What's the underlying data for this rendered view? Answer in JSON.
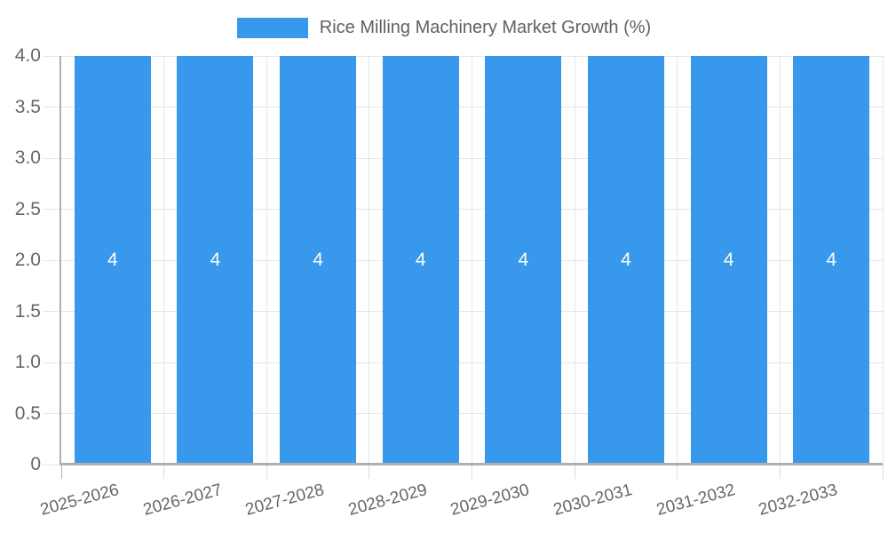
{
  "chart_data": {
    "type": "bar",
    "title": "Rice Milling Machinery Market Growth (%)",
    "categories": [
      "2025-2026",
      "2026-2027",
      "2027-2028",
      "2028-2029",
      "2029-2030",
      "2030-2031",
      "2031-2032",
      "2032-2033"
    ],
    "values": [
      4,
      4,
      4,
      4,
      4,
      4,
      4,
      4
    ],
    "value_labels": [
      "4",
      "4",
      "4",
      "4",
      "4",
      "4",
      "4",
      "4"
    ],
    "xlabel": "",
    "ylabel": "",
    "ylim": [
      0,
      4
    ],
    "y_ticks": [
      0,
      0.5,
      1,
      1.5,
      2,
      2.5,
      3,
      3.5,
      4
    ],
    "y_tick_labels": [
      "0",
      "0.5",
      "1.0",
      "1.5",
      "2.0",
      "2.5",
      "3.0",
      "3.5",
      "4.0"
    ],
    "grid": true,
    "legend_position": "top-center",
    "colors": {
      "bar": "#3898EC",
      "grid": "#E6E6E6",
      "tick": "#DCDCDC",
      "axis": "#AFAFAF",
      "tick_label": "#666666",
      "legend_text": "#616161",
      "bar_value_text": "#FFFFFF",
      "background": "#FFFFFF"
    }
  }
}
